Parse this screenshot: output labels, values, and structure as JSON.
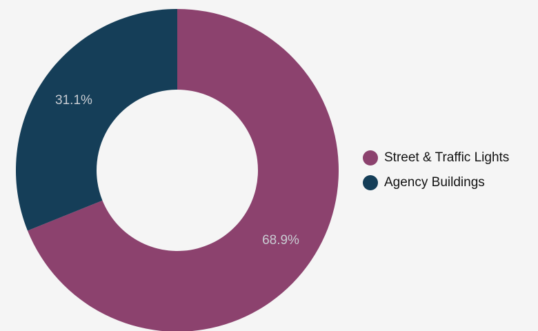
{
  "chart_data": {
    "type": "pie",
    "variant": "donut",
    "categories": [
      "Street & Traffic Lights",
      "Agency Buildings"
    ],
    "values": [
      68.9,
      31.1
    ],
    "data_labels": [
      "68.9%",
      "31.1%"
    ],
    "colors": [
      "#8c426e",
      "#153e58"
    ],
    "label_color": "#c9cdd3",
    "legend_position": "right",
    "title": ""
  }
}
